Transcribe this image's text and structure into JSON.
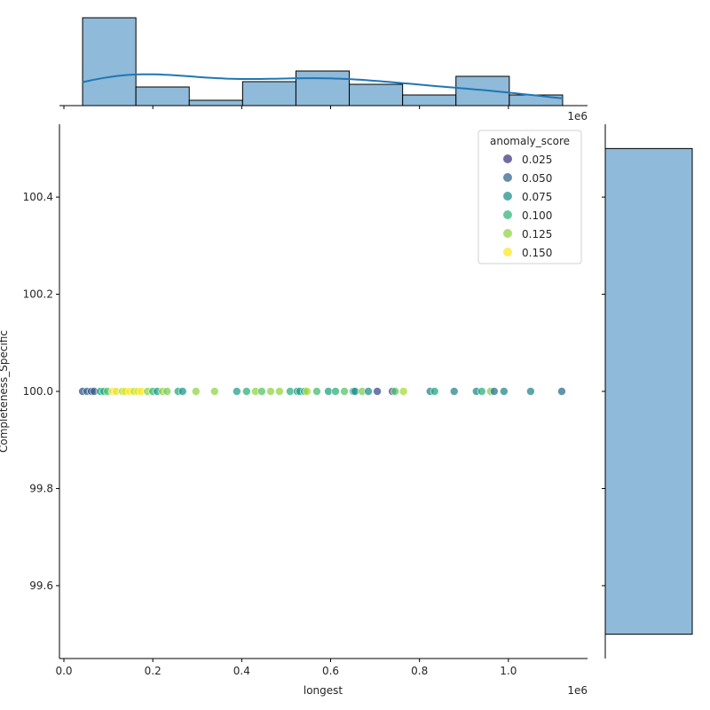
{
  "chart_data": {
    "type": "scatter",
    "subtype": "jointplot",
    "xlabel": "longest",
    "ylabel": "Completeness_Specific",
    "x_offset_label": "1e6",
    "top_offset_label": "1e6",
    "xlim": [
      -10000,
      1178000
    ],
    "ylim": [
      99.45,
      100.55
    ],
    "xticks": [
      0,
      200000,
      400000,
      600000,
      800000,
      1000000
    ],
    "xtick_labels": [
      "0.0",
      "0.2",
      "0.4",
      "0.6",
      "0.8",
      "1.0"
    ],
    "yticks": [
      99.6,
      99.8,
      100.0,
      100.2,
      100.4
    ],
    "ytick_labels": [
      "99.6",
      "99.8",
      "100.0",
      "100.2",
      "100.4"
    ],
    "grid": false,
    "hue": "anomaly_score",
    "palette": "viridis",
    "legend": {
      "title": "anomaly_score",
      "placement": "top-right",
      "entries": [
        {
          "label": "0.025",
          "value": 0.025
        },
        {
          "label": "0.050",
          "value": 0.05
        },
        {
          "label": "0.075",
          "value": 0.075
        },
        {
          "label": "0.100",
          "value": 0.1
        },
        {
          "label": "0.125",
          "value": 0.125
        },
        {
          "label": "0.150",
          "value": 0.15
        }
      ]
    },
    "points": [
      [
        42000,
        100,
        0.04
      ],
      [
        52000,
        100,
        0.05
      ],
      [
        62000,
        100,
        0.035
      ],
      [
        68000,
        100,
        0.045
      ],
      [
        82000,
        100,
        0.085
      ],
      [
        90000,
        100,
        0.09
      ],
      [
        98000,
        100,
        0.11
      ],
      [
        110000,
        100,
        0.15
      ],
      [
        118000,
        100,
        0.145
      ],
      [
        132000,
        100,
        0.13
      ],
      [
        138000,
        100,
        0.145
      ],
      [
        148000,
        100,
        0.15
      ],
      [
        158000,
        100,
        0.135
      ],
      [
        166000,
        100,
        0.145
      ],
      [
        174000,
        100,
        0.15
      ],
      [
        188000,
        100,
        0.125
      ],
      [
        200000,
        100,
        0.1
      ],
      [
        210000,
        100,
        0.085
      ],
      [
        222000,
        100,
        0.125
      ],
      [
        232000,
        100,
        0.12
      ],
      [
        257000,
        100,
        0.09
      ],
      [
        267000,
        100,
        0.08
      ],
      [
        297000,
        100,
        0.125
      ],
      [
        339000,
        100,
        0.125
      ],
      [
        389000,
        100,
        0.085
      ],
      [
        411000,
        100,
        0.095
      ],
      [
        431000,
        100,
        0.125
      ],
      [
        445000,
        100,
        0.11
      ],
      [
        465000,
        100,
        0.125
      ],
      [
        485000,
        100,
        0.125
      ],
      [
        509000,
        100,
        0.095
      ],
      [
        525000,
        100,
        0.08
      ],
      [
        531000,
        100,
        0.085
      ],
      [
        541000,
        100,
        0.1
      ],
      [
        547000,
        100,
        0.13
      ],
      [
        569000,
        100,
        0.105
      ],
      [
        595000,
        100,
        0.085
      ],
      [
        611000,
        100,
        0.095
      ],
      [
        631000,
        100,
        0.11
      ],
      [
        651000,
        100,
        0.085
      ],
      [
        655000,
        100,
        0.075
      ],
      [
        671000,
        100,
        0.12
      ],
      [
        685000,
        100,
        0.075
      ],
      [
        705000,
        100,
        0.035
      ],
      [
        739000,
        100,
        0.035
      ],
      [
        745000,
        100,
        0.11
      ],
      [
        764000,
        100,
        0.13
      ],
      [
        824000,
        100,
        0.07
      ],
      [
        834000,
        100,
        0.09
      ],
      [
        878000,
        100,
        0.07
      ],
      [
        928000,
        100,
        0.07
      ],
      [
        940000,
        100,
        0.095
      ],
      [
        960000,
        100,
        0.12
      ],
      [
        968000,
        100,
        0.06
      ],
      [
        990000,
        100,
        0.07
      ],
      [
        1050000,
        100,
        0.07
      ],
      [
        1120000,
        100,
        0.055
      ]
    ],
    "top_histogram": {
      "bin_edges": [
        42000,
        162000,
        282000,
        402000,
        522000,
        642000,
        762000,
        882000,
        1002000,
        1122000
      ],
      "counts": [
        33,
        7,
        2,
        9,
        13,
        8,
        4,
        11,
        4
      ],
      "kde": true,
      "color": "#1f77b4"
    },
    "right_histogram": {
      "bin_edges": [
        99.5,
        100.5
      ],
      "counts": [
        91
      ]
    }
  }
}
